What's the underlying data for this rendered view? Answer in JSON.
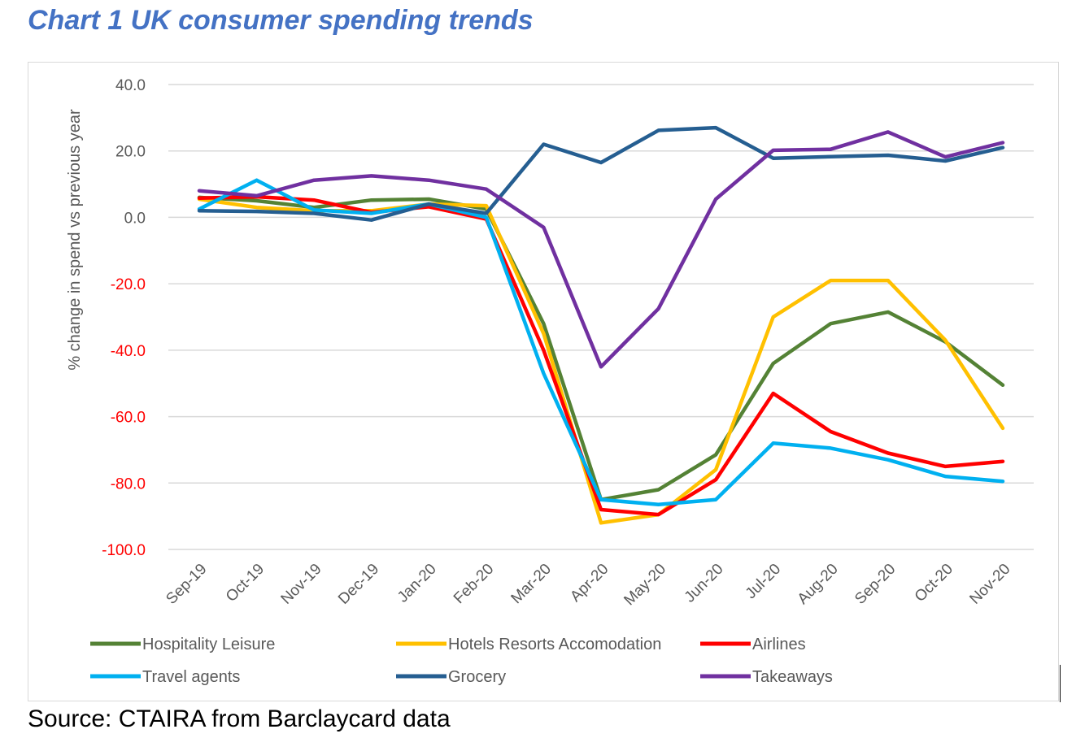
{
  "title": "Chart 1 UK consumer spending trends",
  "source": "Source: CTAIRA from Barclaycard data",
  "chart_data": {
    "type": "line",
    "title": "",
    "xlabel": "",
    "ylabel": "% change in spend vs previous year",
    "ylim": [
      -100,
      40
    ],
    "yticks": [
      40,
      20,
      0,
      -20,
      -40,
      -60,
      -80,
      -100
    ],
    "ytick_labels": [
      "40.0",
      "20.0",
      "0.0",
      "-20.0",
      "-40.0",
      "-60.0",
      "-80.0",
      "-100.0"
    ],
    "negative_tick_color": "#FF0000",
    "positive_tick_color": "#595959",
    "grid": true,
    "legend_position": "bottom",
    "categories": [
      "Sep-19",
      "Oct-19",
      "Nov-19",
      "Dec-19",
      "Jan-20",
      "Feb-20",
      "Mar-20",
      "Apr-20",
      "May-20",
      "Jun-20",
      "Jul-20",
      "Aug-20",
      "Sep-20",
      "Oct-20",
      "Nov-20"
    ],
    "series": [
      {
        "name": "Hospitality Leisure",
        "color": "#548235",
        "values": [
          6,
          5,
          3,
          5.2,
          5.5,
          2.5,
          -32,
          -85,
          -82,
          -71.5,
          -44,
          -32,
          -28.5,
          -37.5,
          -50.5
        ]
      },
      {
        "name": "Hotels Resorts Accomodation",
        "color": "#FFC000",
        "values": [
          5.5,
          3,
          2,
          2,
          4,
          3.5,
          -35,
          -92,
          -89.5,
          -76,
          -30,
          -19,
          -19,
          -37,
          -63.5
        ]
      },
      {
        "name": "Airlines",
        "color": "#FF0000",
        "values": [
          5.8,
          6.2,
          5.2,
          1.5,
          3.2,
          -0.5,
          -40,
          -88,
          -89.5,
          -79,
          -53,
          -64.5,
          -71,
          -75,
          -73.5
        ]
      },
      {
        "name": "Travel agents",
        "color": "#00B0F0",
        "values": [
          2.5,
          11.2,
          2.2,
          1.2,
          4,
          0,
          -47,
          -85,
          -86.5,
          -85,
          -68,
          -69.5,
          -73,
          -78,
          -79.5
        ]
      },
      {
        "name": "Grocery",
        "color": "#255E91",
        "values": [
          2,
          1.8,
          1.2,
          -0.8,
          4,
          1.2,
          22,
          16.5,
          26.2,
          27,
          17.8,
          18.3,
          18.7,
          17,
          21
        ]
      },
      {
        "name": "Takeaways",
        "color": "#7030A0",
        "values": [
          8,
          6.5,
          11.2,
          12.5,
          11.2,
          8.5,
          -3,
          -45,
          -27.5,
          5.5,
          20.2,
          20.5,
          25.7,
          18.2,
          22.5
        ]
      }
    ]
  }
}
